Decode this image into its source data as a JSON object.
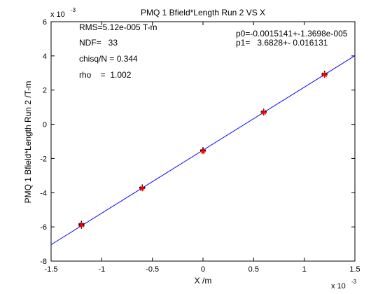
{
  "chart_data": {
    "type": "scatter",
    "title": "PMQ 1 Bfield*Length Run 2 VS X",
    "xlabel": "X /m",
    "ylabel": "PMQ 1 Bfield*Length Run 2 /T-m",
    "x_exponent_label": "x 10",
    "x_exponent": "-3",
    "y_exponent_label": "x 10",
    "y_exponent": "-3",
    "xlim": [
      -1.5,
      1.5
    ],
    "ylim": [
      -8,
      6
    ],
    "xticks": [
      -1.5,
      -1,
      -0.5,
      0,
      0.5,
      1,
      1.5
    ],
    "xtick_labels": [
      "-1.5",
      "-1",
      "-0.5",
      "0",
      "0.5",
      "1",
      "1.5"
    ],
    "yticks": [
      -8,
      -6,
      -4,
      -2,
      0,
      2,
      4,
      6
    ],
    "ytick_labels": [
      "-8",
      "-6",
      "-4",
      "-2",
      "0",
      "2",
      "4",
      "6"
    ],
    "grid": false,
    "stats": {
      "rms": "RMS=5.12e-005 T-m",
      "ndf": "NDF=   33",
      "chisq": "chisq/N = 0.344",
      "rho": "rho    =  1.002"
    },
    "fit_params": {
      "p0": "p0=-0.0015141+-1.3698e-005",
      "p1": "p1=   3.6828+- 0.016131"
    },
    "fit_line": {
      "color": "#0000ff",
      "intercept": -1.514,
      "slope": 3.683
    },
    "series": [
      {
        "marker": "+",
        "color": "#000000",
        "x": [
          -1.2,
          -1.2,
          -1.2,
          -1.2,
          -1.2,
          -1.2,
          -1.2,
          -0.6,
          -0.6,
          -0.6,
          -0.6,
          -0.6,
          -0.6,
          -0.6,
          0,
          0,
          0,
          0,
          0,
          0,
          0,
          0.6,
          0.6,
          0.6,
          0.6,
          0.6,
          0.6,
          0.6,
          1.2,
          1.2,
          1.2,
          1.2,
          1.2,
          1.2,
          1.2
        ],
        "y": [
          -5.95,
          -5.9,
          -5.85,
          -5.82,
          -5.8,
          -5.9,
          -5.87,
          -3.72,
          -3.7,
          -3.68,
          -3.75,
          -3.73,
          -3.7,
          -3.71,
          -1.53,
          -1.5,
          -1.52,
          -1.55,
          -1.51,
          -1.54,
          -1.52,
          0.72,
          0.7,
          0.75,
          0.68,
          0.73,
          0.71,
          0.7,
          2.95,
          2.9,
          2.92,
          2.88,
          2.97,
          2.93,
          2.91
        ]
      },
      {
        "marker": "*",
        "color": "#ff0000",
        "x": [
          -1.2,
          -0.6,
          0,
          0.6,
          1.2
        ],
        "y": [
          -5.9,
          -3.75,
          -1.58,
          0.7,
          2.9
        ]
      }
    ]
  }
}
